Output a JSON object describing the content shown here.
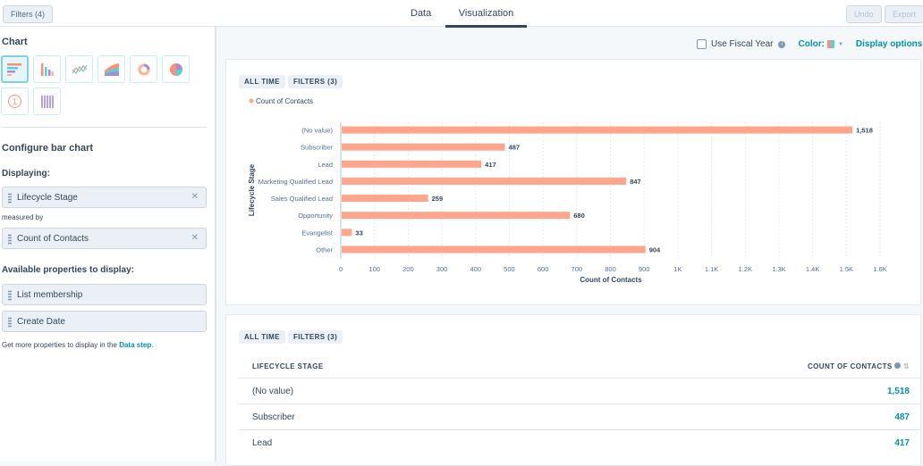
{
  "topbar": {
    "filters": "Filters (4)",
    "tabs": [
      "Data",
      "Visualization"
    ],
    "active_tab": "Visualization",
    "undo": "Undo",
    "export": "Export"
  },
  "sidebar": {
    "chart_heading": "Chart",
    "chart_types": [
      "horizontal-bar",
      "vertical-bar",
      "line",
      "area",
      "donut",
      "pie",
      "kpi",
      "pivot-table"
    ],
    "selected_chart_type": "horizontal-bar",
    "kpi_glyph": "1",
    "configure_heading": "Configure bar chart",
    "displaying_label": "Displaying:",
    "displaying": [
      "Lifecycle Stage"
    ],
    "measured_by_label": "measured by",
    "measured_by": [
      "Count of Contacts"
    ],
    "available_heading": "Available properties to display:",
    "available": [
      "List membership",
      "Create Date"
    ],
    "hint_text": "Get more properties to display in the ",
    "hint_link": "Data step",
    "hint_end": "."
  },
  "toolbar": {
    "fiscal_year": "Use Fiscal Year",
    "fiscal_checked": false,
    "color_label": "Color:",
    "display_options": "Display options"
  },
  "chart_card": {
    "tags": [
      "ALL TIME",
      "FILTERS (3)"
    ]
  },
  "chart_data": {
    "type": "bar",
    "orientation": "horizontal",
    "categories": [
      "(No value)",
      "Subscriber",
      "Lead",
      "Marketing Qualified Lead",
      "Sales Qualified Lead",
      "Opportunity",
      "Evangelist",
      "Other"
    ],
    "series": [
      {
        "name": "Count of Contacts",
        "values": [
          1518,
          487,
          417,
          847,
          259,
          680,
          33,
          904
        ]
      }
    ],
    "data_labels": [
      "1,518",
      "487",
      "417",
      "847",
      "259",
      "680",
      "33",
      "904"
    ],
    "xlabel": "Count of Contacts",
    "ylabel": "Lifecycle Stage",
    "xlim": [
      0,
      1600
    ],
    "xticks": [
      "0",
      "100",
      "200",
      "300",
      "400",
      "500",
      "600",
      "700",
      "800",
      "900",
      "1K",
      "1.1K",
      "1.2K",
      "1.3K",
      "1.4K",
      "1.5K",
      "1.6K"
    ],
    "grid": true,
    "legend": "top-left",
    "color": "#ffa58c"
  },
  "table_card": {
    "tags": [
      "ALL TIME",
      "FILTERS (3)"
    ],
    "columns": [
      "LIFECYCLE STAGE",
      "COUNT OF CONTACTS"
    ],
    "rows": [
      [
        "(No value)",
        "1,518"
      ],
      [
        "Subscriber",
        "487"
      ],
      [
        "Lead",
        "417"
      ]
    ]
  }
}
